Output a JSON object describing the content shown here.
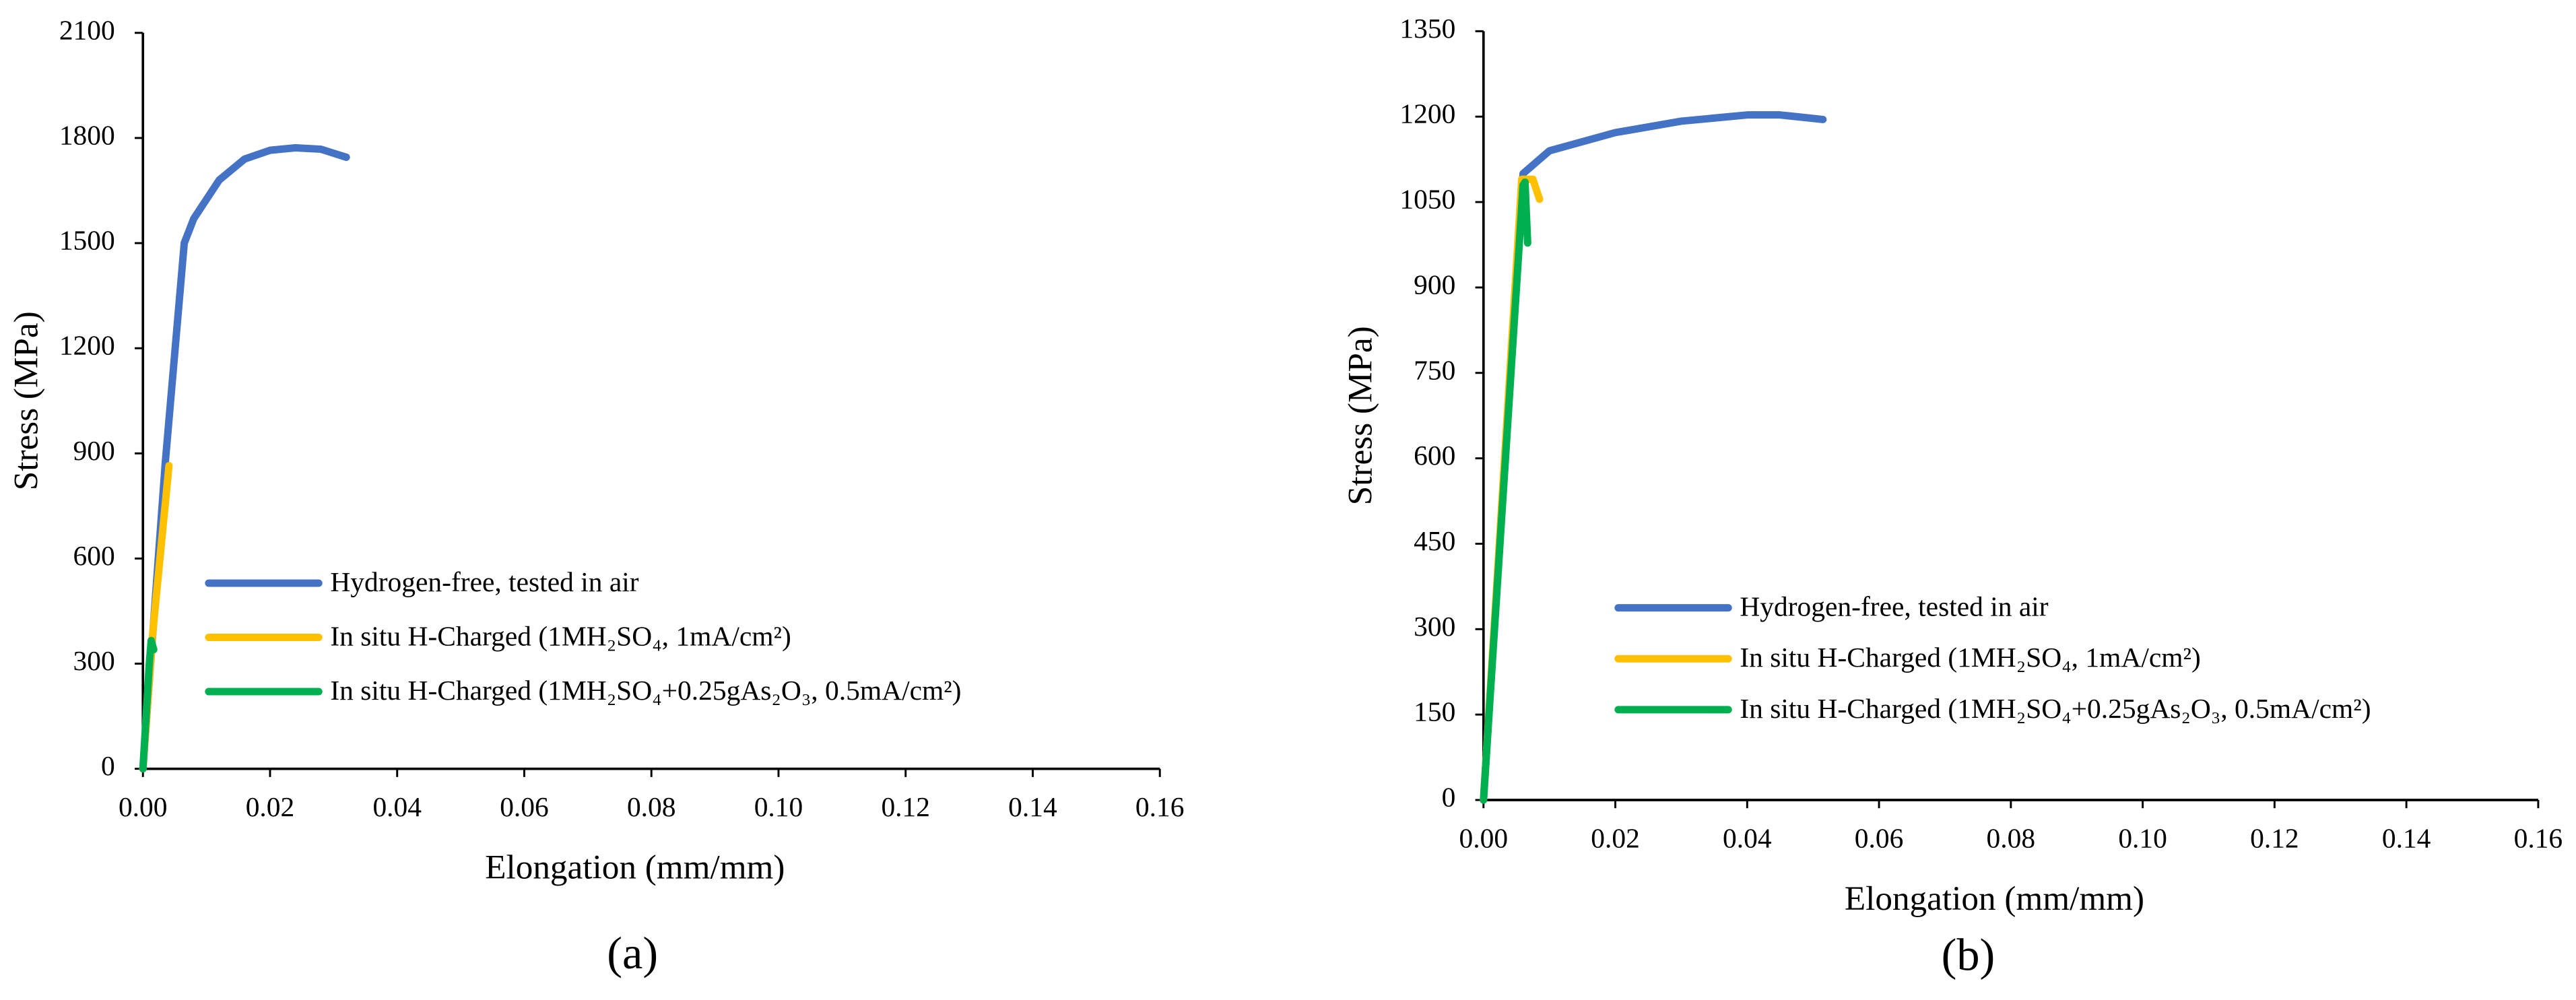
{
  "chart_data": [
    {
      "type": "line",
      "title": "(a)",
      "x_label": "Elongation (mm/mm)",
      "y_label": "Stress (MPa)",
      "xlim": [
        0,
        0.16
      ],
      "ylim": [
        0,
        2100
      ],
      "xticks": [
        {
          "value": 0,
          "label": "0.00"
        },
        {
          "value": 0.02,
          "label": "0.02"
        },
        {
          "value": 0.04,
          "label": "0.04"
        },
        {
          "value": 0.06,
          "label": "0.06"
        },
        {
          "value": 0.08,
          "label": "0.08"
        },
        {
          "value": 0.1,
          "label": "0.10"
        },
        {
          "value": 0.12,
          "label": "0.12"
        },
        {
          "value": 0.14,
          "label": "0.14"
        },
        {
          "value": 0.16,
          "label": "0.16"
        }
      ],
      "yticks": [
        0,
        300,
        600,
        900,
        1200,
        1500,
        1800,
        2100
      ],
      "series": [
        {
          "name": "Hydrogen-free, tested in air",
          "color": "#4472c4",
          "x": [
            0,
            0.0035,
            0.0065,
            0.008,
            0.012,
            0.016,
            0.02,
            0.024,
            0.028,
            0.032
          ],
          "values": [
            0,
            870,
            1500,
            1570,
            1680,
            1740,
            1765,
            1772,
            1768,
            1745
          ]
        },
        {
          "name": "In situ H-Charged (1MH₂SO₄, 1mA/cm²)",
          "color": "#ffc000",
          "x": [
            0,
            0.0015,
            0.0041
          ],
          "values": [
            0,
            380,
            865
          ]
        },
        {
          "name": "In situ H-Charged (1MH₂SO₄+0.25gAs₂O₃, 0.5mA/cm²)",
          "color": "#00b050",
          "x": [
            0,
            0.001,
            0.0013,
            0.0017
          ],
          "values": [
            0,
            300,
            366,
            340
          ]
        }
      ]
    },
    {
      "type": "line",
      "title": "(b)",
      "x_label": "Elongation (mm/mm)",
      "y_label": "Stress (MPa)",
      "xlim": [
        0,
        0.16
      ],
      "ylim": [
        0,
        1350
      ],
      "xticks": [
        {
          "value": 0,
          "label": "0.00"
        },
        {
          "value": 0.02,
          "label": "0.02"
        },
        {
          "value": 0.04,
          "label": "0.04"
        },
        {
          "value": 0.06,
          "label": "0.06"
        },
        {
          "value": 0.08,
          "label": "0.08"
        },
        {
          "value": 0.1,
          "label": "0.10"
        },
        {
          "value": 0.12,
          "label": "0.12"
        },
        {
          "value": 0.14,
          "label": "0.14"
        },
        {
          "value": 0.16,
          "label": "0.16"
        }
      ],
      "yticks": [
        0,
        150,
        300,
        450,
        600,
        750,
        900,
        1050,
        1200,
        1350
      ],
      "series": [
        {
          "name": "Hydrogen-free, tested in air",
          "color": "#4472c4",
          "x": [
            0,
            0.006,
            0.01,
            0.02,
            0.03,
            0.04,
            0.045,
            0.0515
          ],
          "values": [
            0,
            1100,
            1140,
            1172,
            1192,
            1203,
            1203,
            1195
          ]
        },
        {
          "name": "In situ H-Charged (1MH₂SO₄, 1mA/cm²)",
          "color": "#ffc000",
          "x": [
            0,
            0.0058,
            0.0075,
            0.0085
          ],
          "values": [
            0,
            1090,
            1090,
            1055
          ]
        },
        {
          "name": "In situ H-Charged (1MH₂SO₄+0.25gAs₂O₃, 0.5mA/cm²)",
          "color": "#00b050",
          "x": [
            0,
            0.006,
            0.0063,
            0.0067
          ],
          "values": [
            0,
            1080,
            1085,
            978
          ]
        }
      ]
    }
  ]
}
